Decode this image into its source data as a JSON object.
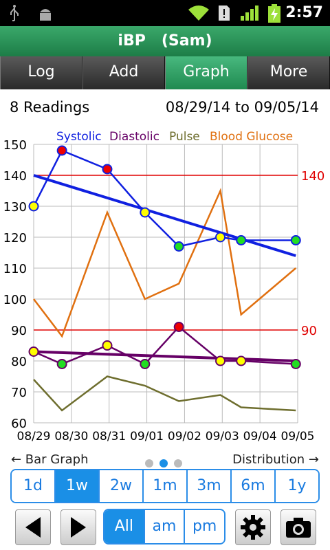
{
  "status_bar": {
    "time": "2:57",
    "icons": [
      "usb-icon",
      "android-debug-icon",
      "wifi-icon",
      "sim-alert-icon",
      "signal-icon",
      "battery-charging-icon"
    ]
  },
  "app": {
    "title": "iBP   (Sam)"
  },
  "tabs": [
    {
      "label": "Log",
      "active": false
    },
    {
      "label": "Add",
      "active": false
    },
    {
      "label": "Graph",
      "active": true
    },
    {
      "label": "More",
      "active": false
    }
  ],
  "summary": {
    "count_text": "8 Readings",
    "range_text": "08/29/14 to 09/05/14"
  },
  "chart_data": {
    "type": "line",
    "x": [
      "08/29",
      "08/30",
      "08/31",
      "09/01",
      "09/02",
      "09/03",
      "09/04",
      "09/05"
    ],
    "ylim": [
      60,
      150
    ],
    "yticks": [
      60,
      70,
      80,
      90,
      100,
      110,
      120,
      130,
      140,
      150
    ],
    "grid": true,
    "legend_position": "top",
    "reference_lines": [
      {
        "value": 140,
        "label": "140",
        "color": "#e00000"
      },
      {
        "value": 90,
        "label": "90",
        "color": "#e00000"
      }
    ],
    "series": [
      {
        "name": "Systolic",
        "color": "#1020e0",
        "points": [
          [
            0,
            130
          ],
          [
            0.75,
            148
          ],
          [
            1.95,
            142
          ],
          [
            2.95,
            128
          ],
          [
            3.85,
            117
          ],
          [
            4.95,
            120
          ],
          [
            5.5,
            119
          ],
          [
            6.95,
            119
          ]
        ],
        "marker_colors": [
          "#ffff00",
          "#ee0000",
          "#ee0000",
          "#ffff00",
          "#22dd22",
          "#ffff00",
          "#22dd22",
          "#22dd22"
        ],
        "trend": [
          [
            0,
            140
          ],
          [
            6.95,
            114
          ]
        ]
      },
      {
        "name": "Diastolic",
        "color": "#660066",
        "points": [
          [
            0,
            83
          ],
          [
            0.75,
            79
          ],
          [
            1.95,
            85
          ],
          [
            2.95,
            79
          ],
          [
            3.85,
            91
          ],
          [
            4.95,
            80
          ],
          [
            5.5,
            80
          ],
          [
            6.95,
            79
          ]
        ],
        "marker_colors": [
          "#ffff00",
          "#22dd22",
          "#ffff00",
          "#22dd22",
          "#ee0000",
          "#ffff00",
          "#ffff00",
          "#22dd22"
        ],
        "trend": [
          [
            0,
            83
          ],
          [
            6.95,
            80
          ]
        ]
      },
      {
        "name": "Pulse",
        "color": "#6e6e2e",
        "points": [
          [
            0,
            74
          ],
          [
            0.75,
            64
          ],
          [
            1.95,
            75
          ],
          [
            2.95,
            72
          ],
          [
            3.85,
            67
          ],
          [
            4.95,
            69
          ],
          [
            5.5,
            65
          ],
          [
            6.95,
            64
          ]
        ]
      },
      {
        "name": "Blood Glucose",
        "color": "#e07010",
        "points": [
          [
            0,
            100
          ],
          [
            0.75,
            88
          ],
          [
            1.95,
            128
          ],
          [
            2.95,
            100
          ],
          [
            3.85,
            105
          ],
          [
            4.95,
            135
          ],
          [
            5.5,
            95
          ],
          [
            6.95,
            110
          ]
        ]
      }
    ]
  },
  "pager": {
    "left_label": "← Bar Graph",
    "right_label": "Distribution →",
    "pages": 3,
    "current": 1
  },
  "ranges": [
    {
      "label": "1d",
      "active": false
    },
    {
      "label": "1w",
      "active": true
    },
    {
      "label": "2w",
      "active": false
    },
    {
      "label": "1m",
      "active": false
    },
    {
      "label": "3m",
      "active": false
    },
    {
      "label": "6m",
      "active": false
    },
    {
      "label": "1y",
      "active": false
    }
  ],
  "time_filter": [
    {
      "label": "All",
      "active": true
    },
    {
      "label": "am",
      "active": false
    },
    {
      "label": "pm",
      "active": false
    }
  ]
}
